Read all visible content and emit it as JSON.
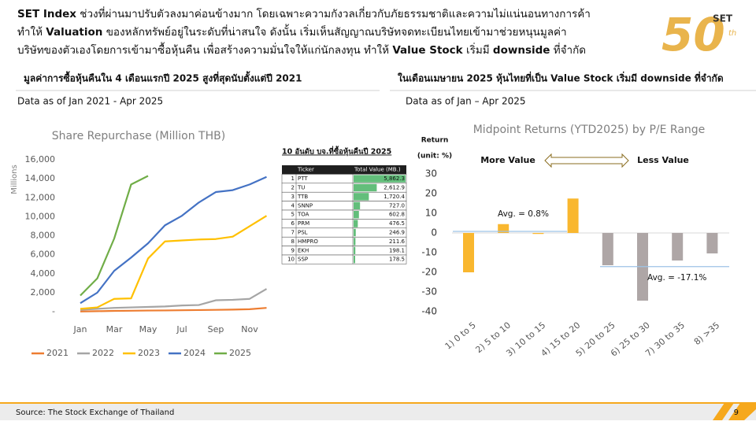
{
  "header": {
    "lines": [
      [
        {
          "text": "SET Index",
          "bold": true
        },
        {
          "text": " ช่วงที่ผ่านมาปรับตัวลงมาค่อนข้างมาก โดยเฉพาะความกังวลเกี่ยวกับภัยธรรมชาติและความไม่แน่นอนทางการค้า",
          "bold": false
        }
      ],
      [
        {
          "text": "ทำให้ ",
          "bold": false
        },
        {
          "text": "Valuation",
          "bold": true
        },
        {
          "text": " ของหลักทรัพย์อยู่ในระดับที่น่าสนใจ ดังนั้น เริ่มเห็นสัญญาณบริษัทจดทะเบียนไทยเข้ามาช่วยหนุนมูลค่า",
          "bold": false
        }
      ],
      [
        {
          "text": "บริษัทของตัวเองโดยการเข้ามาซื้อหุ้นคืน เพื่อสร้างความมั่นใจให้แก่นักลงทุน ทำให้ ",
          "bold": false
        },
        {
          "text": "Value Stock",
          "bold": true
        },
        {
          "text": " เริ่มมี ",
          "bold": false
        },
        {
          "text": "downside",
          "bold": true
        },
        {
          "text": " ที่จำกัด",
          "bold": false
        }
      ]
    ]
  },
  "logo": {
    "brand": "SET",
    "number": "50",
    "suffix": "th"
  },
  "left": {
    "heading": "มูลค่าการซื้อหุ้นคืนใน 4 เดือนแรกปี 2025 สูงที่สุดนับตั้งแต่ปี 2021",
    "note": "Data as of Jan 2021 - Apr 2025"
  },
  "right": {
    "heading": "ในเดือนเมษายน 2025 หุ้นไทยที่เป็น Value Stock เริ่มมี downside ที่จำกัด",
    "note": "Data as of Jan – Apr 2025"
  },
  "chart_data": [
    {
      "type": "line",
      "title": "Share Repurchase (Million THB)",
      "y_label": "Millions",
      "categories": [
        "Jan",
        null,
        "Mar",
        null,
        "May",
        null,
        "Jul",
        null,
        "Sep",
        null,
        "Nov",
        null
      ],
      "ylim": [
        0,
        16000
      ],
      "yticks": [
        {
          "value": 0,
          "label": "-"
        },
        {
          "value": 2000,
          "label": "2,000"
        },
        {
          "value": 4000,
          "label": "4,000"
        },
        {
          "value": 6000,
          "label": "6,000"
        },
        {
          "value": 8000,
          "label": "8,000"
        },
        {
          "value": 10000,
          "label": "10,000"
        },
        {
          "value": 12000,
          "label": "12,000"
        },
        {
          "value": 14000,
          "label": "14,000"
        },
        {
          "value": 16000,
          "label": "16,000"
        }
      ],
      "legend": "bottom",
      "series": [
        {
          "name": "2021",
          "color": "#ed7d31",
          "values": [
            20,
            50,
            80,
            100,
            120,
            130,
            150,
            170,
            190,
            220,
            260,
            400
          ]
        },
        {
          "name": "2022",
          "color": "#a5a5a5",
          "values": [
            200,
            300,
            400,
            450,
            500,
            550,
            650,
            700,
            1200,
            1250,
            1350,
            2400
          ]
        },
        {
          "name": "2023",
          "color": "#ffc000",
          "values": [
            300,
            450,
            1350,
            1400,
            5600,
            7400,
            7500,
            7600,
            7650,
            7900,
            9000,
            10100
          ]
        },
        {
          "name": "2024",
          "color": "#4472c4",
          "values": [
            900,
            2000,
            4300,
            5700,
            7200,
            9100,
            10100,
            11500,
            12600,
            12800,
            13400,
            14200
          ]
        },
        {
          "name": "2025",
          "color": "#70ad47",
          "values": [
            1700,
            3500,
            7700,
            13400,
            14300,
            null,
            null,
            null,
            null,
            null,
            null,
            null
          ]
        }
      ]
    },
    {
      "type": "bar",
      "title": "Midpoint Returns (YTD2025) by P/E Range",
      "y_label": [
        "Return",
        "(unit: %)"
      ],
      "categories": [
        "1) 0 to 5",
        "2) 5 to 10",
        "3) 10 to 15",
        "4) 15 to 20",
        "5) 20 to 25",
        "6) 25 to 30",
        "7) 30 to 35",
        "8) >35"
      ],
      "values": [
        -20,
        4.5,
        -0.5,
        17.5,
        -16.4,
        -34.4,
        -14,
        -10.4
      ],
      "colors": [
        "#f9b72f",
        "#f9b72f",
        "#f9b72f",
        "#f9b72f",
        "#aea6a6",
        "#aea6a6",
        "#aea6a6",
        "#aea6a6"
      ],
      "ylim": [
        -40,
        30
      ],
      "yticks": [
        -40,
        -30,
        -20,
        -10,
        0,
        10,
        20,
        30
      ],
      "annotations": [
        "More Value",
        "Less Value"
      ],
      "averages": [
        {
          "label": "Avg. = 0.8%",
          "value": 0.8
        },
        {
          "label": "Avg. = -17.1%",
          "value": -17.1
        }
      ]
    }
  ],
  "table": {
    "title": "10 อันดับ บจ.ที่ซื้อหุ้นคืนปี 2025",
    "columns": [
      "Ticker",
      "Total Value (MB.)"
    ],
    "ranks": [
      1,
      2,
      3,
      4,
      5,
      6,
      7,
      8,
      9,
      10
    ],
    "tickers": [
      "PTT",
      "TU",
      "TTB",
      "SNNP",
      "TOA",
      "PRM",
      "PSL",
      "HMPRO",
      "EKH",
      "SSP"
    ],
    "values": [
      5862.3,
      2612.9,
      1720.4,
      727,
      602.8,
      476.5,
      246.9,
      211.6,
      198.1,
      178.5
    ],
    "value_labels": [
      "5,862.3",
      "2,612.9",
      "1,720.4",
      "727.0",
      "602.8",
      "476.5",
      "246.9",
      "211.6",
      "198.1",
      "178.5"
    ]
  },
  "footer": {
    "source": "Source: The Stock Exchange of Thailand",
    "page": 9
  }
}
